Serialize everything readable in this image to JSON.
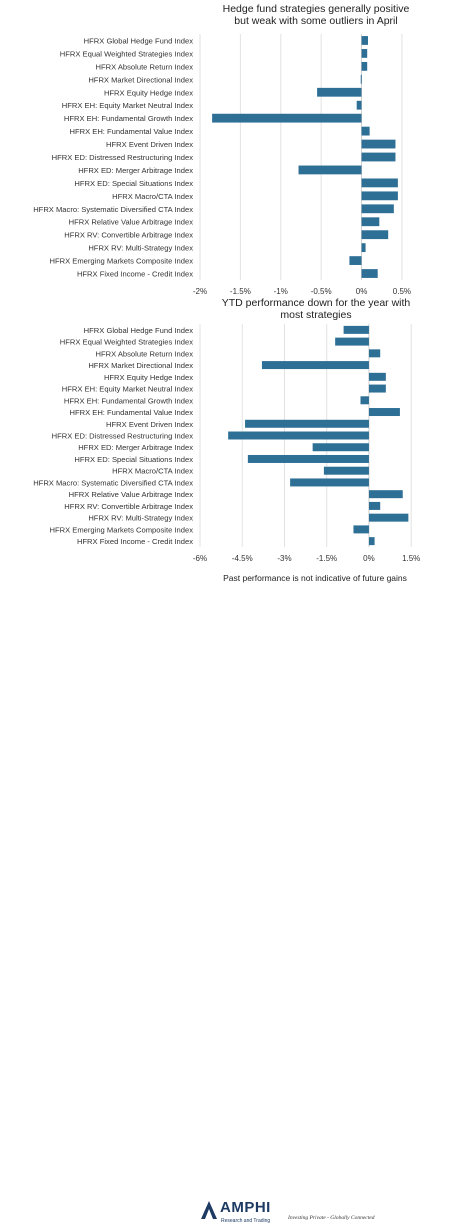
{
  "colors": {
    "bar": "#2e6f96",
    "grid": "#e2e2e2",
    "zero": "#cfcfcf",
    "brand": "#1d3a63"
  },
  "chart_data": [
    {
      "type": "bar",
      "orientation": "horizontal",
      "title_line1": "Hedge fund strategies generally positive",
      "title_line2": "but weak with some outliers in April",
      "categories": [
        "HFRX Global Hedge Fund Index",
        "HFRX Equal Weighted Strategies Index",
        "HFRX Absolute Return Index",
        "HFRX Market Directional Index",
        "HFRX Equity Hedge Index",
        "HFRX EH: Equity Market Neutral Index",
        "HFRX EH: Fundamental Growth Index",
        "HFRX EH: Fundamental Value Index",
        "HFRX Event Driven Index",
        "HFRX ED: Distressed Restructuring Index",
        "HFRX ED: Merger Arbitrage Index",
        "HFRX ED: Special Situations Index",
        "HFRX Macro/CTA Index",
        "HFRX Macro: Systematic Diversified CTA Index",
        "HFRX Relative Value Arbitrage Index",
        "HFRX RV: Convertible Arbitrage Index",
        "HFRX RV: Multi-Strategy Index",
        "HFRX Emerging Markets Composite Index",
        "HFRX Fixed Income - Credit Index"
      ],
      "values": [
        0.08,
        0.07,
        0.07,
        -0.01,
        -0.55,
        -0.06,
        -1.85,
        0.1,
        0.42,
        0.42,
        -0.78,
        0.45,
        0.45,
        0.4,
        0.22,
        0.33,
        0.05,
        -0.15,
        0.2
      ],
      "xlim": [
        -2.0,
        0.6
      ],
      "ticks": [
        -2.0,
        -1.5,
        -1.0,
        -0.5,
        0,
        0.5
      ],
      "tick_labels": [
        "-2%",
        "-1.5%",
        "-1%",
        "-0.5%",
        "0%",
        "0.5%"
      ],
      "grid": true
    },
    {
      "type": "bar",
      "orientation": "horizontal",
      "title_line1": "YTD performance down for the year with",
      "title_line2": "most strategies",
      "categories": [
        "HFRX Global Hedge Fund Index",
        "HFRX Equal Weighted Strategies Index",
        "HFRX Absolute Return Index",
        "HFRX Market Directional Index",
        "HFRX Equity Hedge Index",
        "HFRX EH: Equity Market Neutral Index",
        "HFRX EH: Fundamental Growth Index",
        "HFRX EH: Fundamental Value Index",
        "HFRX Event Driven Index",
        "HFRX ED: Distressed Restructuring Index",
        "HFRX ED: Merger Arbitrage Index",
        "HFRX ED: Special Situations Index",
        "HFRX Macro/CTA Index",
        "HFRX Macro: Systematic Diversified CTA Index",
        "HFRX Relative Value Arbitrage Index",
        "HFRX RV: Convertible Arbitrage Index",
        "HFRX RV: Multi-Strategy Index",
        "HFRX Emerging Markets Composite Index",
        "HFRX Fixed Income - Credit Index"
      ],
      "values": [
        -0.9,
        -1.2,
        0.4,
        -3.8,
        0.6,
        0.6,
        -0.3,
        1.1,
        -4.4,
        -5.0,
        -2.0,
        -4.3,
        -1.6,
        -2.8,
        1.2,
        0.4,
        1.4,
        -0.55,
        0.2
      ],
      "xlim": [
        -6.0,
        1.6
      ],
      "ticks": [
        -6.0,
        -4.5,
        -3.0,
        -1.5,
        0,
        1.5
      ],
      "tick_labels": [
        "-6%",
        "-4.5%",
        "-3%",
        "-1.5%",
        "0%",
        "1.5%"
      ],
      "grid": true
    }
  ],
  "footer": {
    "note": "Past performance is not indicative of future gains",
    "brand_name": "AMPHI",
    "brand_sub": "Research and Trading",
    "tagline": "Investing Private - Globally Connected"
  }
}
